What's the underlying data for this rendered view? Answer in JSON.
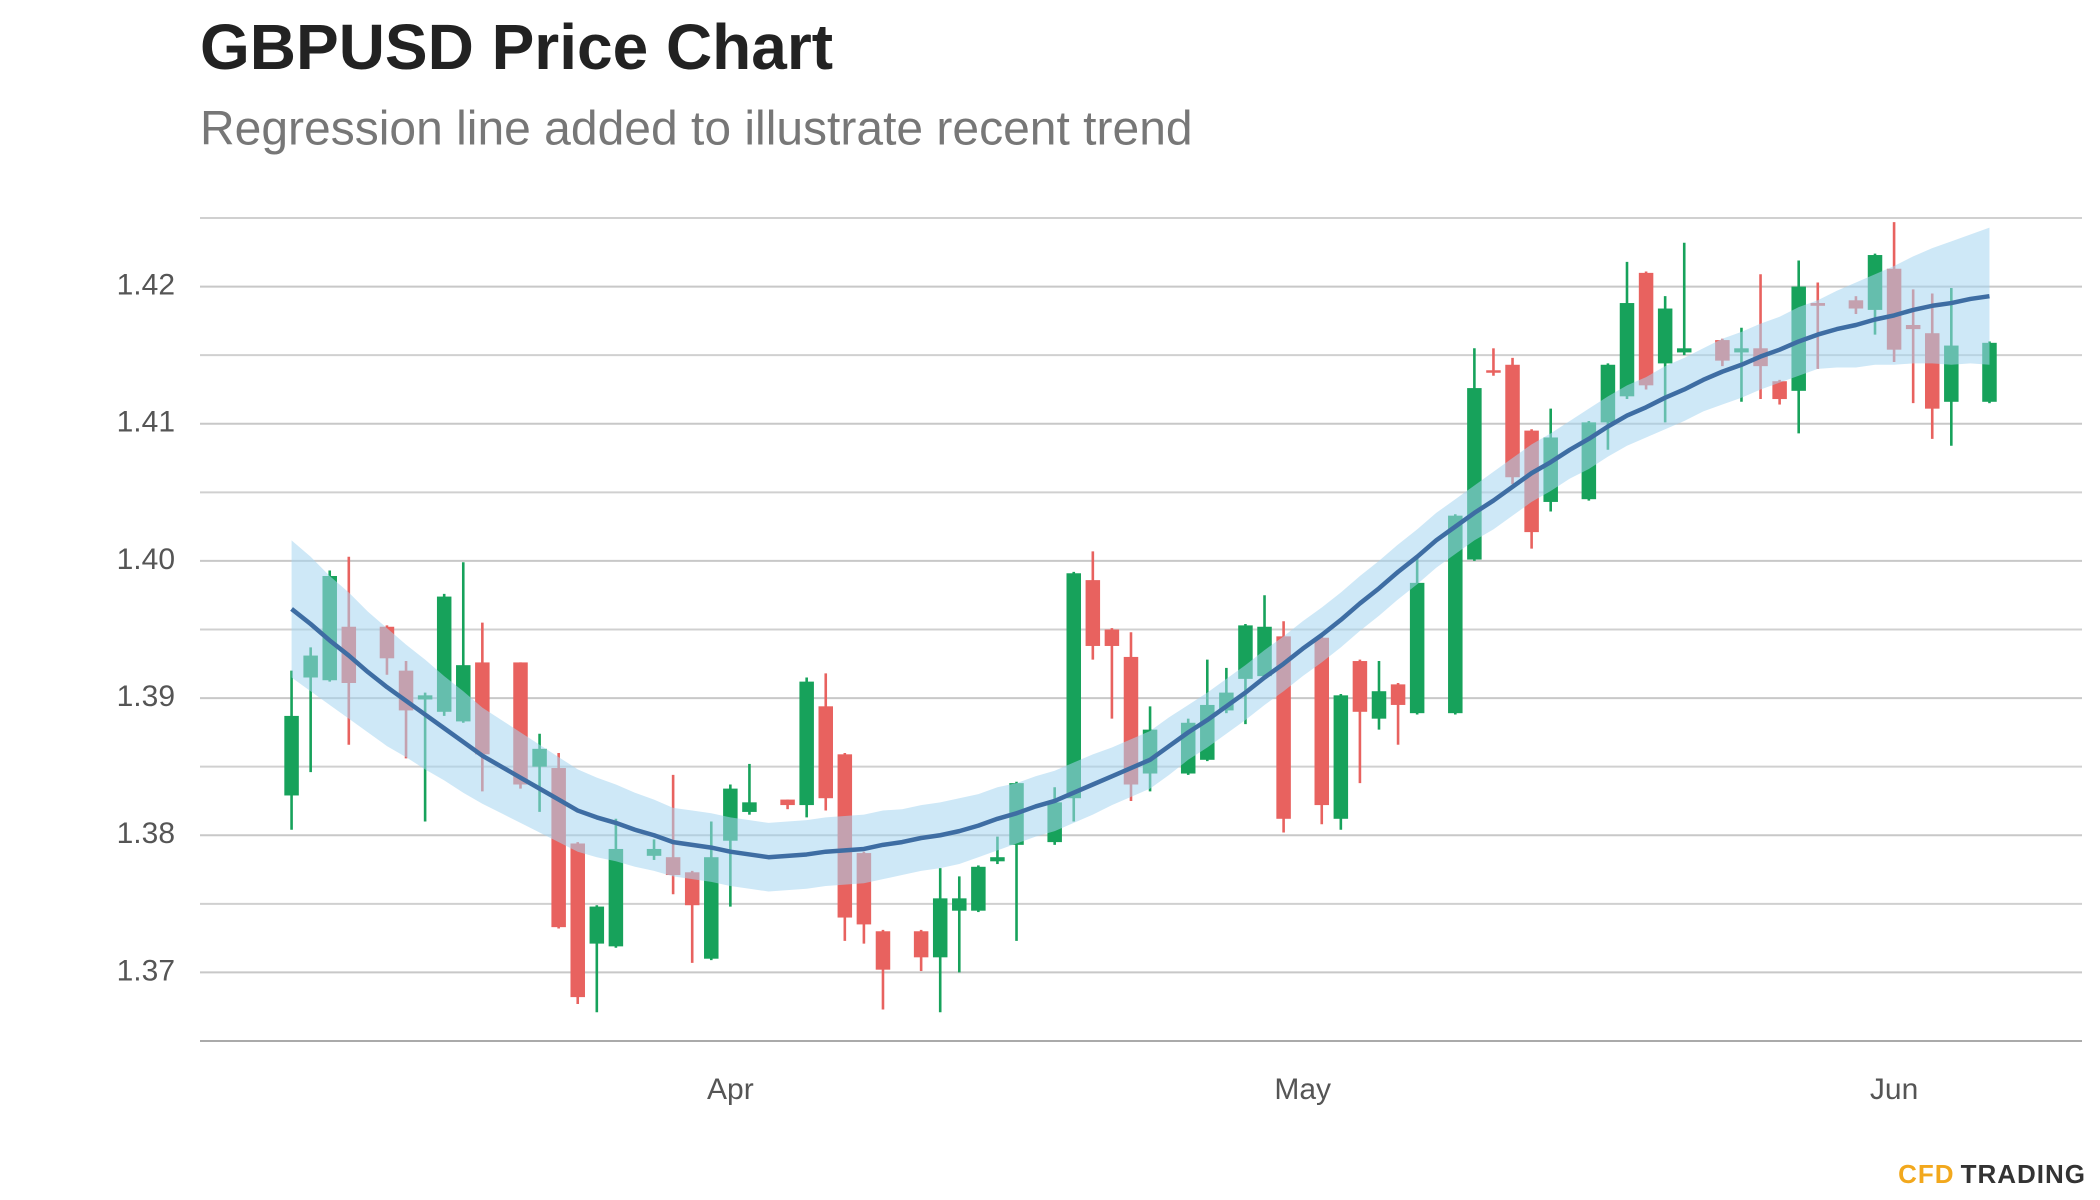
{
  "chart_data": {
    "type": "candlestick",
    "title": "GBPUSD Price Chart",
    "subtitle": "Regression line added to illustrate recent trend",
    "categories": [
      null,
      null,
      null,
      null,
      null,
      null,
      null,
      null,
      null,
      null,
      null,
      null,
      null,
      null,
      null,
      null,
      null,
      null,
      null,
      null,
      null,
      null,
      null,
      "Apr",
      null,
      null,
      null,
      null,
      null,
      null,
      null,
      null,
      null,
      null,
      null,
      null,
      null,
      null,
      null,
      null,
      null,
      null,
      null,
      null,
      null,
      null,
      null,
      null,
      null,
      null,
      null,
      null,
      null,
      "May",
      null,
      null,
      null,
      null,
      null,
      null,
      null,
      null,
      null,
      null,
      null,
      null,
      null,
      null,
      null,
      null,
      null,
      null,
      null,
      null,
      null,
      null,
      null,
      null,
      null,
      null,
      null,
      null,
      null,
      null,
      "Jun",
      null,
      null,
      null,
      null,
      null
    ],
    "open": [
      1.3829,
      1.3915,
      1.3913,
      1.3952,
      null,
      1.3952,
      1.392,
      1.3899,
      1.389,
      1.3883,
      1.3926,
      null,
      1.3926,
      1.385,
      1.3849,
      1.3794,
      1.3721,
      1.3719,
      null,
      1.3785,
      1.3784,
      1.3773,
      1.371,
      1.3796,
      1.3817,
      null,
      1.3826,
      1.3822,
      1.3894,
      1.3859,
      1.3787,
      1.373,
      null,
      1.373,
      1.3711,
      1.3745,
      1.3745,
      1.3781,
      1.3793,
      null,
      1.3795,
      1.3827,
      1.3986,
      1.395,
      1.393,
      1.3845,
      null,
      1.3845,
      1.3855,
      1.3891,
      1.3914,
      1.3916,
      1.3945,
      null,
      1.3944,
      1.3812,
      1.3927,
      1.3885,
      1.391,
      1.3889,
      null,
      1.3889,
      1.4001,
      1.4139,
      1.4143,
      1.4095,
      1.4043,
      null,
      1.4045,
      1.4101,
      1.412,
      1.421,
      1.4144,
      1.4152,
      null,
      1.4161,
      1.4152,
      1.4155,
      1.4131,
      1.4124,
      1.4188,
      null,
      1.419,
      1.4183,
      1.4213,
      1.4172,
      1.4166,
      1.4116,
      null,
      1.4116
    ],
    "high": [
      1.392,
      1.3937,
      1.3993,
      1.4003,
      null,
      1.3953,
      1.3927,
      1.3904,
      1.3976,
      1.3999,
      1.3955,
      null,
      1.3926,
      1.3874,
      1.386,
      1.3795,
      1.3749,
      1.3812,
      null,
      1.3797,
      1.3844,
      1.3774,
      1.381,
      1.3837,
      1.3852,
      null,
      1.3826,
      1.3915,
      1.3918,
      1.386,
      1.3788,
      1.3731,
      null,
      1.3731,
      1.3776,
      1.377,
      1.3778,
      1.3799,
      1.3839,
      null,
      1.3835,
      1.3992,
      1.4007,
      1.3951,
      1.3948,
      1.3894,
      null,
      1.3885,
      1.3928,
      1.3922,
      1.3954,
      1.3975,
      1.3956,
      null,
      1.3945,
      1.3903,
      1.3928,
      1.3927,
      1.3911,
      1.4003,
      null,
      1.4034,
      1.4155,
      1.4155,
      1.4148,
      1.4096,
      1.4111,
      null,
      1.4102,
      1.4144,
      1.4218,
      1.4211,
      1.4193,
      1.4232,
      null,
      1.4162,
      1.417,
      1.4209,
      1.4132,
      1.4219,
      1.4203,
      null,
      1.4193,
      1.4224,
      1.4247,
      1.4198,
      1.4195,
      1.4199,
      null,
      1.416
    ],
    "low": [
      1.3804,
      1.3846,
      1.3912,
      1.3866,
      null,
      1.3917,
      1.3856,
      1.381,
      1.3887,
      1.3882,
      1.3832,
      null,
      1.3834,
      1.3817,
      1.3732,
      1.3677,
      1.3671,
      1.3718,
      null,
      1.3782,
      1.3757,
      1.3707,
      1.3709,
      1.3748,
      1.3815,
      null,
      1.3819,
      1.3813,
      1.3818,
      1.3723,
      1.3721,
      1.3673,
      null,
      1.3701,
      1.3671,
      1.37,
      1.3744,
      1.3779,
      1.3723,
      null,
      1.3793,
      1.381,
      1.3928,
      1.3885,
      1.3825,
      1.3832,
      null,
      1.3844,
      1.3854,
      1.3889,
      1.3881,
      1.3915,
      1.3802,
      null,
      1.3808,
      1.3804,
      1.3838,
      1.3877,
      1.3866,
      1.3888,
      null,
      1.3888,
      1.4,
      1.4135,
      1.4056,
      1.4009,
      1.4036,
      null,
      1.4044,
      1.4081,
      1.4118,
      1.4125,
      1.4101,
      1.415,
      null,
      1.4142,
      1.4116,
      1.4118,
      1.4114,
      1.4093,
      1.414,
      null,
      1.418,
      1.4165,
      1.4145,
      1.4115,
      1.4089,
      1.4084,
      null,
      1.4115
    ],
    "close": [
      1.3887,
      1.3931,
      1.3989,
      1.3911,
      null,
      1.3929,
      1.3891,
      1.3902,
      1.3974,
      1.3924,
      1.3859,
      null,
      1.3837,
      1.3863,
      1.3733,
      1.3682,
      1.3748,
      1.379,
      null,
      1.379,
      1.3771,
      1.3749,
      1.3784,
      1.3834,
      1.3824,
      null,
      1.3822,
      1.3912,
      1.3827,
      1.374,
      1.3735,
      1.3702,
      null,
      1.3711,
      1.3754,
      1.3754,
      1.3777,
      1.3784,
      1.3838,
      null,
      1.3824,
      1.3991,
      1.3938,
      1.3938,
      1.3837,
      1.3877,
      null,
      1.3882,
      1.3895,
      1.3904,
      1.3953,
      1.3952,
      1.3812,
      null,
      1.3822,
      1.3902,
      1.389,
      1.3905,
      1.3895,
      1.3984,
      null,
      1.4033,
      1.4126,
      1.4138,
      1.4061,
      1.4021,
      1.409,
      null,
      1.4101,
      1.4143,
      1.4188,
      1.4128,
      1.4184,
      1.4155,
      null,
      1.4146,
      1.4155,
      1.4142,
      1.4118,
      1.42,
      1.4186,
      null,
      1.4184,
      1.4223,
      1.4154,
      1.4169,
      1.4111,
      1.4157,
      null,
      1.4159
    ],
    "up_color": "#17a25b",
    "down_color": "#e8625f",
    "trend": {
      "color": "#3e6da3",
      "band_color": "#a6d5f0",
      "values": [
        1.3965,
        1.3954,
        1.3942,
        1.3931,
        1.3919,
        1.3908,
        1.3898,
        1.3888,
        1.3878,
        1.3868,
        1.3858,
        1.385,
        1.3842,
        1.3834,
        1.3826,
        1.3818,
        1.3813,
        1.3809,
        1.3804,
        1.38,
        1.3795,
        1.3793,
        1.3791,
        1.3788,
        1.3786,
        1.3784,
        1.3785,
        1.3786,
        1.3788,
        1.3789,
        1.379,
        1.3793,
        1.3795,
        1.3798,
        1.38,
        1.3803,
        1.3807,
        1.3812,
        1.3816,
        1.3821,
        1.3825,
        1.3831,
        1.3837,
        1.3843,
        1.3849,
        1.3855,
        1.3865,
        1.3875,
        1.3884,
        1.3894,
        1.3904,
        1.3915,
        1.3925,
        1.3936,
        1.3946,
        1.3957,
        1.3969,
        1.398,
        1.3992,
        1.4003,
        1.4015,
        1.4025,
        1.4035,
        1.4044,
        1.4054,
        1.4064,
        1.4072,
        1.4081,
        1.4089,
        1.4098,
        1.4106,
        1.4112,
        1.4119,
        1.4125,
        1.4132,
        1.4138,
        1.4143,
        1.4149,
        1.4154,
        1.416,
        1.4165,
        1.4169,
        1.4172,
        1.4176,
        1.4179,
        1.4183,
        1.4186,
        1.4188,
        1.4191,
        1.4193
      ],
      "upper": [
        1.4015,
        1.4003,
        1.3989,
        1.3977,
        1.3963,
        1.3951,
        1.3939,
        1.3928,
        1.3916,
        1.3905,
        1.3893,
        1.3884,
        1.3875,
        1.3866,
        1.3857,
        1.3848,
        1.3842,
        1.3837,
        1.3831,
        1.3826,
        1.382,
        1.3818,
        1.3816,
        1.3813,
        1.3811,
        1.3809,
        1.381,
        1.3811,
        1.3813,
        1.3814,
        1.3815,
        1.3818,
        1.3819,
        1.3822,
        1.3824,
        1.3827,
        1.383,
        1.3835,
        1.3838,
        1.3843,
        1.3847,
        1.3853,
        1.3859,
        1.3864,
        1.387,
        1.3876,
        1.3886,
        1.3895,
        1.3904,
        1.3914,
        1.3924,
        1.3935,
        1.3945,
        1.3956,
        1.3966,
        1.3977,
        1.3989,
        1.4,
        1.4012,
        1.4023,
        1.4035,
        1.4045,
        1.4055,
        1.4065,
        1.4075,
        1.4085,
        1.4093,
        1.4102,
        1.4111,
        1.412,
        1.4128,
        1.4134,
        1.4142,
        1.4148,
        1.4155,
        1.4162,
        1.4167,
        1.4173,
        1.4178,
        1.4185,
        1.419,
        1.4197,
        1.4203,
        1.4209,
        1.4215,
        1.4222,
        1.4228,
        1.4233,
        1.4238,
        1.4243
      ],
      "lower": [
        1.3915,
        1.3905,
        1.3895,
        1.3885,
        1.3875,
        1.3865,
        1.3857,
        1.3848,
        1.384,
        1.3831,
        1.3823,
        1.3816,
        1.3809,
        1.3802,
        1.3795,
        1.3788,
        1.3784,
        1.3781,
        1.3777,
        1.3774,
        1.377,
        1.3768,
        1.3766,
        1.3763,
        1.3761,
        1.3759,
        1.376,
        1.3761,
        1.3763,
        1.3764,
        1.3765,
        1.3768,
        1.3771,
        1.3774,
        1.3776,
        1.3779,
        1.3784,
        1.3789,
        1.3794,
        1.3799,
        1.3803,
        1.3809,
        1.3815,
        1.3822,
        1.3828,
        1.3834,
        1.3844,
        1.3855,
        1.3864,
        1.3874,
        1.3884,
        1.3895,
        1.3905,
        1.3916,
        1.3926,
        1.3937,
        1.3949,
        1.396,
        1.3972,
        1.3983,
        1.3995,
        1.4005,
        1.4015,
        1.4023,
        1.4033,
        1.4043,
        1.4051,
        1.406,
        1.4067,
        1.4076,
        1.4084,
        1.409,
        1.4096,
        1.4102,
        1.4109,
        1.4114,
        1.4119,
        1.4125,
        1.413,
        1.4135,
        1.414,
        1.4141,
        1.4141,
        1.4143,
        1.4143,
        1.4144,
        1.4144,
        1.4143,
        1.4144,
        1.4143
      ]
    },
    "ylim": [
      1.365,
      1.425
    ],
    "yticks": [
      1.37,
      1.38,
      1.39,
      {
        "value": 1.4,
        "label": "1.40"
      },
      1.41,
      1.42
    ],
    "minor_gridlines": [
      1.365,
      1.375,
      1.385,
      1.395,
      1.405,
      1.415,
      1.425
    ],
    "grid": true
  },
  "brand": {
    "accent": "CFD",
    "rest": "TRADING",
    "accent_color": "#f2a81d",
    "rest_color": "#333333"
  }
}
